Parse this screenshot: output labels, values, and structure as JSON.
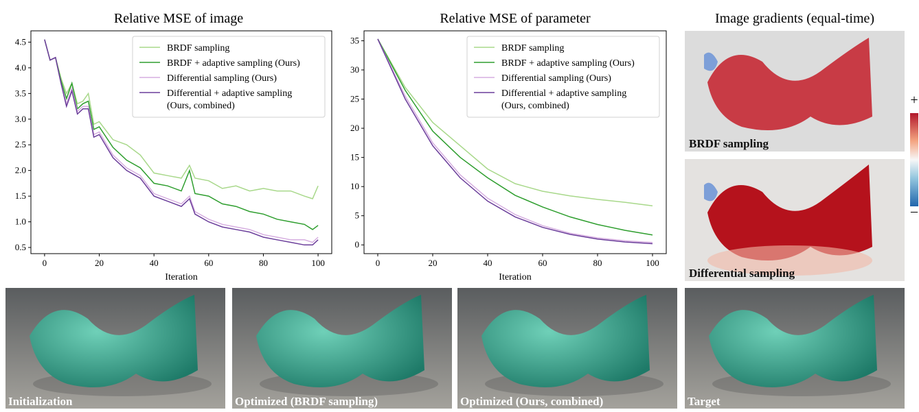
{
  "chart_data": [
    {
      "type": "line",
      "title": "Relative MSE of image",
      "x_label": "Iteration",
      "x": [
        0,
        2,
        4,
        6,
        8,
        10,
        12,
        14,
        16,
        18,
        20,
        25,
        30,
        35,
        40,
        45,
        50,
        53,
        55,
        60,
        65,
        70,
        75,
        80,
        85,
        90,
        95,
        98,
        100
      ],
      "xlim": [
        -5,
        105
      ],
      "xticks": [
        0,
        20,
        40,
        60,
        80,
        100
      ],
      "ylim": [
        0.38,
        4.72
      ],
      "yticks": [
        0.5,
        {
          "value": 1,
          "label": "1.0"
        },
        1.5,
        {
          "value": 2,
          "label": "2.0"
        },
        2.5,
        {
          "value": 3,
          "label": "3.0"
        },
        3.5,
        {
          "value": 4,
          "label": "4.0"
        },
        4.5
      ],
      "legend": "upper right",
      "series": [
        {
          "name": "BRDF sampling",
          "color": "#a8d88a",
          "values": [
            4.55,
            4.15,
            4.2,
            3.8,
            3.5,
            3.7,
            3.3,
            3.35,
            3.5,
            2.9,
            2.95,
            2.6,
            2.5,
            2.3,
            1.95,
            1.9,
            1.85,
            2.1,
            1.85,
            1.8,
            1.65,
            1.7,
            1.6,
            1.65,
            1.6,
            1.6,
            1.5,
            1.45,
            1.7
          ]
        },
        {
          "name": "BRDF + adaptive sampling (Ours)",
          "color": "#2e9e2e",
          "values": [
            4.55,
            4.15,
            4.2,
            3.75,
            3.4,
            3.7,
            3.2,
            3.3,
            3.35,
            2.8,
            2.85,
            2.45,
            2.2,
            2.05,
            1.75,
            1.7,
            1.6,
            2.0,
            1.55,
            1.5,
            1.35,
            1.3,
            1.2,
            1.15,
            1.05,
            1.0,
            0.95,
            0.85,
            0.93
          ]
        },
        {
          "name": "Differential sampling (Ours)",
          "color": "#d6aee0",
          "values": [
            4.55,
            4.15,
            4.2,
            3.7,
            3.3,
            3.6,
            3.15,
            3.25,
            3.25,
            2.7,
            2.75,
            2.3,
            2.05,
            1.9,
            1.55,
            1.45,
            1.35,
            1.5,
            1.2,
            1.05,
            0.95,
            0.9,
            0.85,
            0.75,
            0.7,
            0.65,
            0.65,
            0.6,
            0.7
          ]
        },
        {
          "name": "Differential + adaptive sampling\n(Ours, combined)",
          "color": "#6a3d9a",
          "values": [
            4.55,
            4.15,
            4.2,
            3.7,
            3.25,
            3.55,
            3.1,
            3.2,
            3.2,
            2.65,
            2.7,
            2.25,
            2.0,
            1.85,
            1.5,
            1.4,
            1.3,
            1.45,
            1.15,
            1.0,
            0.9,
            0.85,
            0.8,
            0.7,
            0.65,
            0.6,
            0.55,
            0.55,
            0.65
          ]
        }
      ]
    },
    {
      "type": "line",
      "title": "Relative MSE of parameter",
      "x_label": "Iteration",
      "x": [
        0,
        10,
        20,
        30,
        40,
        50,
        60,
        70,
        80,
        90,
        100
      ],
      "xlim": [
        -5,
        105
      ],
      "xticks": [
        0,
        20,
        40,
        60,
        80,
        100
      ],
      "ylim": [
        -1.5,
        36.7
      ],
      "yticks": [
        0,
        5,
        10,
        15,
        20,
        25,
        30,
        35
      ],
      "legend": "upper right",
      "series": [
        {
          "name": "BRDF sampling",
          "color": "#a8d88a",
          "values": [
            35.3,
            27,
            21,
            17,
            13,
            10.5,
            9.2,
            8.4,
            7.8,
            7.3,
            6.7
          ]
        },
        {
          "name": "BRDF + adaptive sampling (Ours)",
          "color": "#2e9e2e",
          "values": [
            35.3,
            26.5,
            19.5,
            15,
            11.5,
            8.5,
            6.5,
            4.8,
            3.5,
            2.5,
            1.7
          ]
        },
        {
          "name": "Differential sampling (Ours)",
          "color": "#d6aee0",
          "values": [
            35.3,
            25.5,
            17.5,
            12,
            8,
            5.2,
            3.3,
            2,
            1.2,
            0.7,
            0.4
          ]
        },
        {
          "name": "Differential + adaptive sampling\n(Ours, combined)",
          "color": "#6a3d9a",
          "values": [
            35.3,
            25,
            17,
            11.5,
            7.5,
            4.8,
            3,
            1.8,
            1,
            0.5,
            0.2
          ]
        }
      ]
    }
  ],
  "panels": {
    "gradients_title": "Image gradients (equal-time)",
    "gradient_images": [
      "BRDF sampling",
      "Differential sampling"
    ],
    "colorbar": [
      "+",
      "–"
    ],
    "renders": [
      "Initialization",
      "Optimized (BRDF sampling)",
      "Optimized (Ours, combined)",
      "Target"
    ]
  }
}
